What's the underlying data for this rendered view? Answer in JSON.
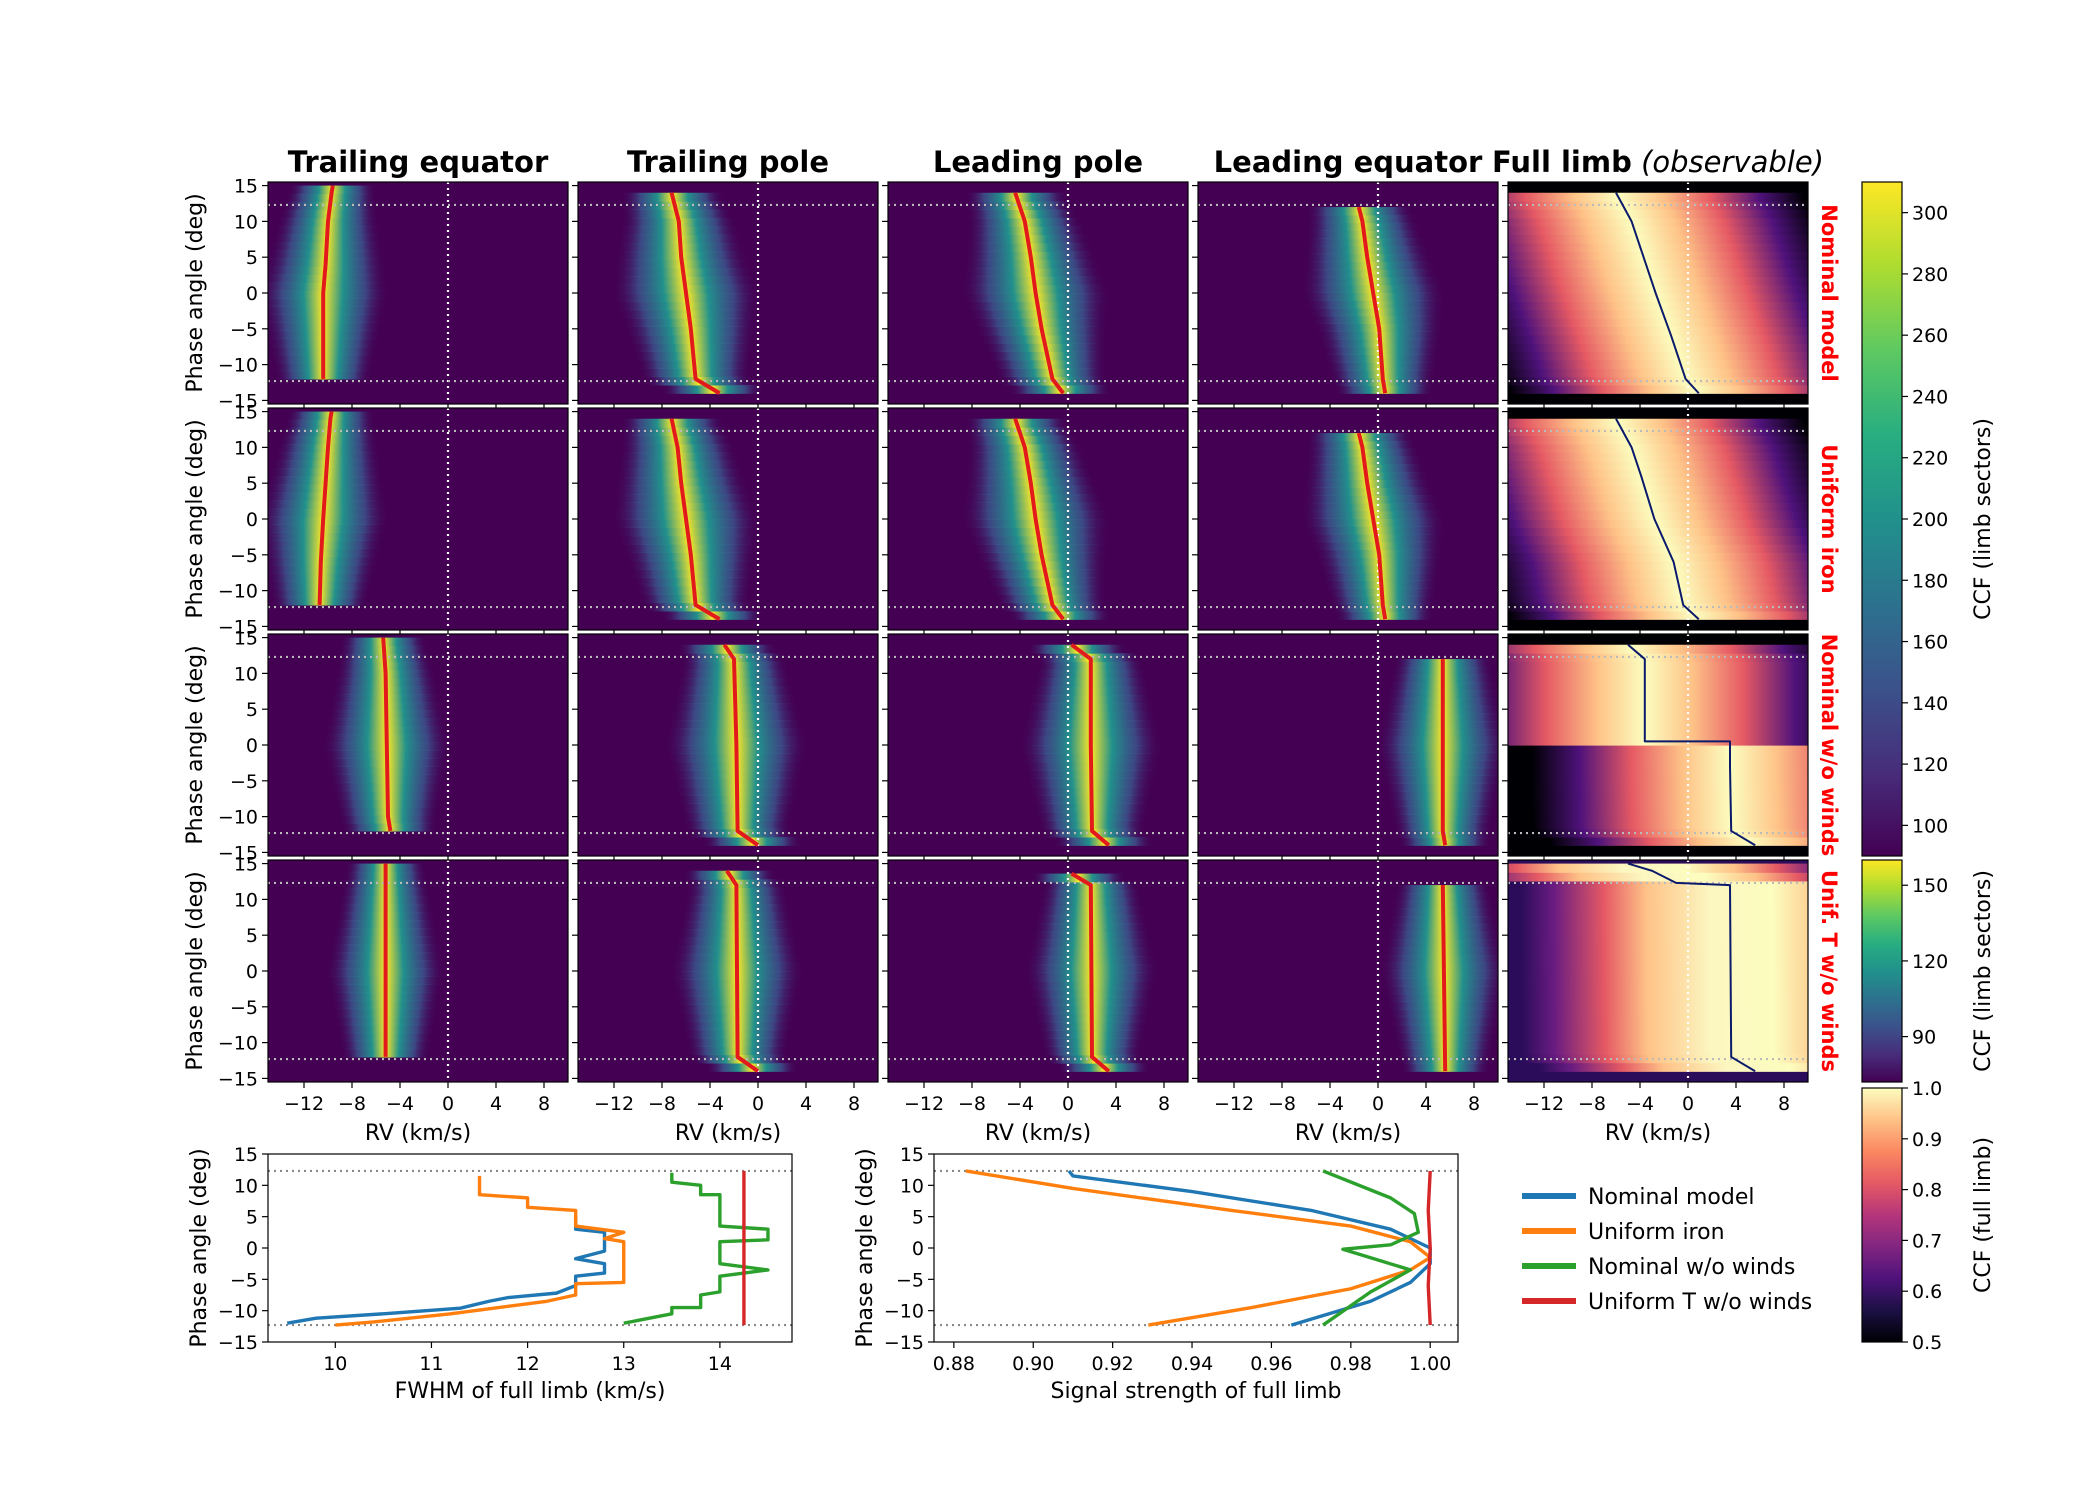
{
  "figure": {
    "columns": [
      "Trailing equator",
      "Trailing pole",
      "Leading pole",
      "Leading equator",
      "Full limb"
    ],
    "full_limb_suffix": "(observable)",
    "rows": [
      "Nominal model",
      "Uniform iron",
      "Nominal w/o winds",
      "Unif. T w/o winds"
    ],
    "heatmap_xlabel": "RV (km/s)",
    "heatmap_ylabel": "Phase angle (deg)",
    "heatmap_xticks": [
      "−12",
      "−8",
      "−4",
      "0",
      "4",
      "8"
    ],
    "heatmap_yticks": [
      "−15",
      "−10",
      "−5",
      "0",
      "5",
      "10",
      "15"
    ],
    "colors": {
      "peak_trace": "#e31a1c",
      "full_limb_trace": "#0b1a6b",
      "rest_line": "#ffffff",
      "ingress_egress_line": "#bbbbbb",
      "row_label": "#ff0000"
    }
  },
  "colorbars": [
    {
      "label": "CCF (limb sectors)",
      "colormap": "viridis",
      "range": [
        90,
        310
      ],
      "ticks": [
        "100",
        "120",
        "140",
        "160",
        "180",
        "200",
        "220",
        "240",
        "260",
        "280",
        "300"
      ]
    },
    {
      "label": "CCF (limb sectors)",
      "colormap": "viridis",
      "range": [
        72,
        160
      ],
      "ticks": [
        "90",
        "120",
        "150"
      ]
    },
    {
      "label": "CCF (full limb)",
      "colormap": "magma",
      "range": [
        0.5,
        1.0
      ],
      "ticks": [
        "0.5",
        "0.6",
        "0.7",
        "0.8",
        "0.9",
        "1.0"
      ]
    }
  ],
  "chart_data": [
    {
      "type": "heatmap",
      "description_of_axes": "x: radial velocity; y: orbital phase angle",
      "xlabel": "RV (km/s)",
      "ylabel": "Phase angle (deg)",
      "xlim": [
        -15,
        10
      ],
      "ylim": [
        -15.5,
        15.5
      ],
      "ingress_egress_phases": [
        -12.3,
        12.3
      ],
      "peak_rv_traces": {
        "Nominal model": {
          "Trailing equator": [
            [
              -12,
              -10.4
            ],
            [
              0,
              -10.4
            ],
            [
              4,
              -10.2
            ],
            [
              10,
              -10.0
            ],
            [
              14,
              -9.7
            ],
            [
              15,
              -9.6
            ]
          ],
          "Trailing pole": [
            [
              -14,
              -3.2
            ],
            [
              -12,
              -5.2
            ],
            [
              -5,
              -5.6
            ],
            [
              0,
              -6.0
            ],
            [
              5,
              -6.4
            ],
            [
              10,
              -6.6
            ],
            [
              14,
              -7.2
            ]
          ],
          "Leading pole": [
            [
              -14,
              -0.4
            ],
            [
              -12,
              -1.3
            ],
            [
              -5,
              -2.2
            ],
            [
              0,
              -2.7
            ],
            [
              5,
              -3.1
            ],
            [
              10,
              -3.6
            ],
            [
              14,
              -4.4
            ]
          ],
          "Leading equator": [
            [
              -14,
              0.6
            ],
            [
              -12,
              0.4
            ],
            [
              -5,
              0.1
            ],
            [
              0,
              -0.4
            ],
            [
              5,
              -0.9
            ],
            [
              10,
              -1.3
            ],
            [
              12,
              -1.6
            ]
          ],
          "Full limb": [
            [
              -14,
              0.9
            ],
            [
              -12,
              -0.2
            ],
            [
              -6,
              -1.4
            ],
            [
              0,
              -2.7
            ],
            [
              6,
              -3.9
            ],
            [
              10,
              -4.7
            ],
            [
              14,
              -6.0
            ]
          ]
        },
        "Uniform iron": {
          "Trailing equator": [
            [
              -12,
              -10.7
            ],
            [
              -6,
              -10.6
            ],
            [
              0,
              -10.4
            ],
            [
              5,
              -10.2
            ],
            [
              10,
              -10.0
            ],
            [
              14,
              -9.8
            ],
            [
              15,
              -9.7
            ]
          ],
          "Trailing pole": [
            [
              -14,
              -3.2
            ],
            [
              -12,
              -5.2
            ],
            [
              -5,
              -5.6
            ],
            [
              0,
              -6.0
            ],
            [
              5,
              -6.4
            ],
            [
              10,
              -6.7
            ],
            [
              14,
              -7.2
            ]
          ],
          "Leading pole": [
            [
              -14,
              -0.4
            ],
            [
              -12,
              -1.3
            ],
            [
              -5,
              -2.2
            ],
            [
              0,
              -2.7
            ],
            [
              5,
              -3.1
            ],
            [
              10,
              -3.6
            ],
            [
              14,
              -4.4
            ]
          ],
          "Leading equator": [
            [
              -14,
              0.6
            ],
            [
              -12,
              0.4
            ],
            [
              -5,
              0.1
            ],
            [
              0,
              -0.4
            ],
            [
              5,
              -0.9
            ],
            [
              10,
              -1.3
            ],
            [
              12,
              -1.6
            ]
          ],
          "Full limb": [
            [
              -14,
              0.9
            ],
            [
              -12,
              -0.4
            ],
            [
              -6,
              -1.2
            ],
            [
              0,
              -2.8
            ],
            [
              6,
              -3.9
            ],
            [
              10,
              -4.7
            ],
            [
              14,
              -6.0
            ]
          ]
        },
        "Nominal w/o winds": {
          "Trailing equator": [
            [
              -12,
              -4.8
            ],
            [
              -10,
              -5.0
            ],
            [
              10,
              -5.2
            ],
            [
              15,
              -5.4
            ]
          ],
          "Trailing pole": [
            [
              -14,
              0.0
            ],
            [
              -12,
              -1.7
            ],
            [
              0,
              -1.8
            ],
            [
              12,
              -2.0
            ],
            [
              14,
              -2.8
            ]
          ],
          "Leading pole": [
            [
              -14,
              3.4
            ],
            [
              -12,
              2.0
            ],
            [
              0,
              1.9
            ],
            [
              12,
              1.9
            ],
            [
              14,
              0.3
            ]
          ],
          "Leading equator": [
            [
              -14,
              5.6
            ],
            [
              -12,
              5.4
            ],
            [
              0,
              5.4
            ],
            [
              11,
              5.4
            ],
            [
              12,
              5.4
            ]
          ],
          "Full limb": [
            [
              -14,
              5.6
            ],
            [
              -12,
              3.6
            ],
            [
              -3,
              3.5
            ],
            [
              0.5,
              3.5
            ],
            [
              0.5,
              -3.6
            ],
            [
              12,
              -3.6
            ],
            [
              14,
              -5.0
            ]
          ]
        },
        "Unif. T w/o winds": {
          "Trailing equator": [
            [
              -12,
              -5.2
            ],
            [
              15,
              -5.2
            ]
          ],
          "Trailing pole": [
            [
              -14,
              0.0
            ],
            [
              -12,
              -1.7
            ],
            [
              12,
              -1.8
            ],
            [
              14,
              -2.6
            ]
          ],
          "Leading pole": [
            [
              -14,
              3.4
            ],
            [
              -12,
              2.0
            ],
            [
              12,
              1.9
            ],
            [
              13.6,
              0.3
            ]
          ],
          "Leading equator": [
            [
              -14,
              5.6
            ],
            [
              12,
              5.4
            ]
          ],
          "Full limb": [
            [
              -14,
              5.6
            ],
            [
              -12,
              3.6
            ],
            [
              12,
              3.5
            ],
            [
              12.3,
              -1.0
            ],
            [
              14,
              -3.0
            ],
            [
              15,
              -5.0
            ]
          ]
        }
      }
    },
    {
      "type": "line",
      "xlabel": "FWHM of full limb (km/s)",
      "ylabel": "Phase angle (deg)",
      "xlim": [
        9.3,
        14.75
      ],
      "ylim": [
        -15,
        15
      ],
      "xticks": [
        10,
        11,
        12,
        13,
        14
      ],
      "yticks": [
        -15,
        -10,
        -5,
        0,
        5,
        10,
        15
      ],
      "hlines": [
        -12.3,
        12.3
      ],
      "series": [
        {
          "name": "Nominal model",
          "color": "#1f77b4",
          "points": [
            [
              9.5,
              -12
            ],
            [
              9.8,
              -11.2
            ],
            [
              10.5,
              -10.5
            ],
            [
              11.3,
              -9.6
            ],
            [
              11.6,
              -8.5
            ],
            [
              11.8,
              -7.9
            ],
            [
              12.3,
              -7.2
            ],
            [
              12.5,
              -6.0
            ],
            [
              12.5,
              -4.5
            ],
            [
              12.8,
              -4.0
            ],
            [
              12.8,
              -2.5
            ],
            [
              12.5,
              -1.7
            ],
            [
              12.8,
              -0.5
            ],
            [
              12.8,
              2.5
            ],
            [
              12.5,
              3.0
            ],
            [
              12.5,
              5.0
            ]
          ]
        },
        {
          "name": "Uniform iron",
          "color": "#ff7f0e",
          "points": [
            [
              10.0,
              -12.3
            ],
            [
              10.4,
              -11.8
            ],
            [
              11.2,
              -10.5
            ],
            [
              12.2,
              -8.5
            ],
            [
              12.5,
              -7.5
            ],
            [
              12.5,
              -6.5
            ],
            [
              12.5,
              -5.7
            ],
            [
              13.0,
              -5.5
            ],
            [
              13.0,
              -4.5
            ],
            [
              13.0,
              1.0
            ],
            [
              12.8,
              1.5
            ],
            [
              13.0,
              2.5
            ],
            [
              12.5,
              3.5
            ],
            [
              12.5,
              5.0
            ],
            [
              12.5,
              6.0
            ],
            [
              12.0,
              6.5
            ],
            [
              12.0,
              8.0
            ],
            [
              11.5,
              8.5
            ],
            [
              11.5,
              11.5
            ]
          ]
        },
        {
          "name": "Nominal w/o winds",
          "color": "#2ca02c",
          "points": [
            [
              13.0,
              -12
            ],
            [
              13.5,
              -10.5
            ],
            [
              13.5,
              -9.5
            ],
            [
              13.8,
              -9.5
            ],
            [
              13.8,
              -7.5
            ],
            [
              14.0,
              -7.0
            ],
            [
              14.0,
              -4.5
            ],
            [
              14.5,
              -3.5
            ],
            [
              14.0,
              -2.5
            ],
            [
              14.0,
              1.0
            ],
            [
              14.5,
              1.3
            ],
            [
              14.5,
              3.0
            ],
            [
              14.0,
              3.5
            ],
            [
              14.0,
              8.5
            ],
            [
              13.8,
              8.5
            ],
            [
              13.8,
              10.0
            ],
            [
              13.5,
              10.5
            ],
            [
              13.5,
              12
            ]
          ]
        },
        {
          "name": "Uniform T w/o winds",
          "color": "#d62728",
          "points": [
            [
              14.25,
              -12.3
            ],
            [
              14.25,
              12.3
            ]
          ]
        }
      ]
    },
    {
      "type": "line",
      "xlabel": "Signal strength of full limb",
      "ylabel": "Phase angle (deg)",
      "xlim": [
        0.875,
        1.007
      ],
      "ylim": [
        -15,
        15
      ],
      "xticks": [
        0.88,
        0.9,
        0.92,
        0.94,
        0.96,
        0.98,
        1.0
      ],
      "yticks": [
        -15,
        -10,
        -5,
        0,
        5,
        10,
        15
      ],
      "hlines": [
        -12.3,
        12.3
      ],
      "series": [
        {
          "name": "Nominal model",
          "color": "#1f77b4",
          "points": [
            [
              0.965,
              -12.3
            ],
            [
              0.985,
              -8.5
            ],
            [
              0.995,
              -5.5
            ],
            [
              1.0,
              -2.5
            ],
            [
              1.0,
              0.0
            ],
            [
              0.99,
              3.0
            ],
            [
              0.97,
              6.0
            ],
            [
              0.94,
              9.0
            ],
            [
              0.91,
              11.5
            ],
            [
              0.909,
              12.3
            ]
          ]
        },
        {
          "name": "Uniform iron",
          "color": "#ff7f0e",
          "points": [
            [
              0.929,
              -12.3
            ],
            [
              0.955,
              -9.5
            ],
            [
              0.98,
              -6.5
            ],
            [
              0.995,
              -3.5
            ],
            [
              1.0,
              -1.5
            ],
            [
              0.995,
              1.0
            ],
            [
              0.98,
              3.5
            ],
            [
              0.95,
              6.0
            ],
            [
              0.91,
              9.5
            ],
            [
              0.883,
              12.3
            ]
          ]
        },
        {
          "name": "Nominal w/o winds",
          "color": "#2ca02c",
          "points": [
            [
              0.973,
              -12.3
            ],
            [
              0.985,
              -7.0
            ],
            [
              0.995,
              -3.5
            ],
            [
              0.978,
              -0.2
            ],
            [
              0.99,
              0.5
            ],
            [
              0.997,
              2.5
            ],
            [
              0.996,
              5.5
            ],
            [
              0.99,
              8.0
            ],
            [
              0.973,
              12.3
            ]
          ]
        },
        {
          "name": "Uniform T w/o winds",
          "color": "#d62728",
          "points": [
            [
              1.0,
              -12.3
            ],
            [
              0.9995,
              -6.0
            ],
            [
              1.0,
              0.0
            ],
            [
              0.9995,
              6.0
            ],
            [
              1.0,
              12.3
            ]
          ]
        }
      ]
    }
  ]
}
